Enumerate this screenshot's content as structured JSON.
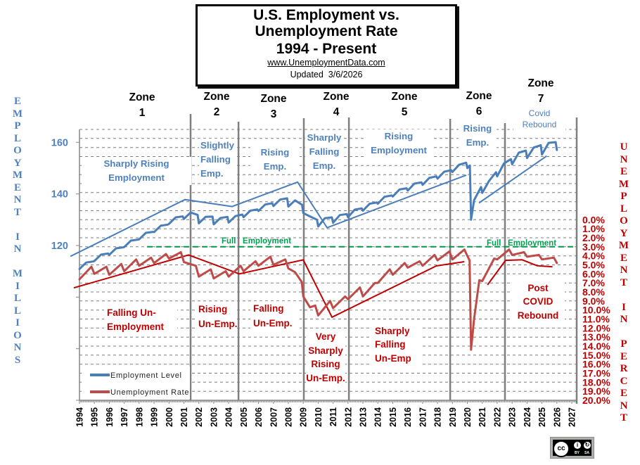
{
  "title": {
    "line1": "U.S. Employment vs.",
    "line2": "Unemployment Rate",
    "line3": "1994 - Present",
    "url": "www.UnemploymentData.com",
    "updated": "Updated  3/6/2026"
  },
  "zones": [
    {
      "label": "Zone",
      "number": "1"
    },
    {
      "label": "Zone",
      "number": "2"
    },
    {
      "label": "Zone",
      "number": "3"
    },
    {
      "label": "Zone",
      "number": "4"
    },
    {
      "label": "Zone",
      "number": "5"
    },
    {
      "label": "Zone",
      "number": "6"
    },
    {
      "label": "Zone",
      "number": "7"
    }
  ],
  "annotations": {
    "employment": [
      {
        "zone": 1,
        "lines": [
          "Sharply Rising",
          "Employment"
        ]
      },
      {
        "zone": 2,
        "lines": [
          "Slightly",
          "Falling",
          "Emp."
        ]
      },
      {
        "zone": 3,
        "lines": [
          "Rising",
          "Emp."
        ]
      },
      {
        "zone": 4,
        "lines": [
          "Sharply",
          "Falling",
          "Emp."
        ]
      },
      {
        "zone": 5,
        "lines": [
          "Rising",
          "Employment"
        ]
      },
      {
        "zone": 6,
        "lines": [
          "Rising",
          "Emp."
        ]
      },
      {
        "zone": 7,
        "lines": [
          "Covid",
          "Rebound"
        ]
      }
    ],
    "unemployment": [
      {
        "zone": 1,
        "lines": [
          "Falling Un-",
          "Employment"
        ]
      },
      {
        "zone": 2,
        "lines": [
          "Rising",
          "Un-Emp."
        ]
      },
      {
        "zone": 3,
        "lines": [
          "Falling",
          "Un-Emp."
        ]
      },
      {
        "zone": 4,
        "lines": [
          "Very",
          "Sharply",
          "Rising",
          "Un-Emp."
        ]
      },
      {
        "zone": 5,
        "lines": [
          "Sharply",
          "Falling",
          "Un-Emp"
        ]
      },
      {
        "zone": 7,
        "lines": [
          "Post",
          "COVID",
          "Rebound"
        ]
      }
    ]
  },
  "full_employment_label": "Full   Employment",
  "legend": [
    {
      "label": "Employment Level",
      "color": "#4a7ebb"
    },
    {
      "label": "Unemployment Rate",
      "color": "#be4b48"
    }
  ],
  "axis_titles": {
    "left": "EMPLOYMENT IN MILLIONS",
    "right": "UNEMPLOYMENT IN PERCENT"
  },
  "license": {
    "cc": "cc",
    "by_glyph": "i",
    "sa_glyph": "↻",
    "by": "BY",
    "sa": "SA"
  },
  "chart_data": {
    "type": "line",
    "title": "U.S. Employment vs. Unemployment Rate 1994 - Present",
    "subtitle": "www.UnemploymentData.com  Updated 3/6/2026",
    "grid": true,
    "legend_position": "bottom-left",
    "x_axis": {
      "label": "",
      "range": [
        1994,
        2027.33
      ],
      "tick_labels": [
        "1994",
        "1995",
        "1996",
        "1997",
        "1998",
        "1999",
        "2000",
        "2001",
        "2002",
        "2003",
        "2004",
        "2005",
        "2006",
        "2007",
        "2008",
        "2009",
        "2010",
        "2011",
        "2012",
        "2013",
        "2014",
        "2015",
        "2016",
        "2017",
        "2018",
        "2019",
        "2020",
        "2021",
        "2022",
        "2023",
        "2024",
        "2025",
        "2026",
        "2027"
      ]
    },
    "y_left": {
      "label": "EMPLOYMENT IN MILLIONS",
      "range": [
        60,
        165
      ],
      "tick_marks": [
        60,
        80,
        100,
        120,
        140,
        160
      ],
      "ticks": [
        {
          "value": 120,
          "label": "120"
        },
        {
          "value": 140,
          "label": "140"
        },
        {
          "value": 160,
          "label": "160"
        }
      ]
    },
    "y_right": {
      "label": "UNEMPLOYMENT IN PERCENT",
      "range": [
        -10,
        20
      ],
      "inverted": true,
      "grid_step": 1,
      "ticks": [
        {
          "value": 0,
          "label": "0.0%"
        },
        {
          "value": 1,
          "label": "1.0%"
        },
        {
          "value": 2,
          "label": "2.0%"
        },
        {
          "value": 3,
          "label": "3.0%"
        },
        {
          "value": 4,
          "label": "4.0%"
        },
        {
          "value": 5,
          "label": "5.0%"
        },
        {
          "value": 6,
          "label": "6.0%"
        },
        {
          "value": 7,
          "label": "7.0%"
        },
        {
          "value": 8,
          "label": "8.0%"
        },
        {
          "value": 9,
          "label": "9.0%"
        },
        {
          "value": 10,
          "label": "10.0%"
        },
        {
          "value": 11,
          "label": "11.0%"
        },
        {
          "value": 12,
          "label": "12.0%"
        },
        {
          "value": 13,
          "label": "13.0%"
        },
        {
          "value": 14,
          "label": "14.0%"
        },
        {
          "value": 15,
          "label": "15.0%"
        },
        {
          "value": 16,
          "label": "16.0%"
        },
        {
          "value": 17,
          "label": "17.0%"
        },
        {
          "value": 18,
          "label": "18.0%"
        },
        {
          "value": 19,
          "label": "19.0%"
        },
        {
          "value": 20,
          "label": "20.0%"
        }
      ]
    },
    "zone_boundaries": [
      2001.45,
      2004.66,
      2009.04,
      2012.06,
      2018.85,
      2022.52,
      2027.33
    ],
    "reference_lines": [
      {
        "name": "Full Employment",
        "axis": "right",
        "value": 3.0,
        "from": 1998.53,
        "color": "#00964b"
      }
    ],
    "series": [
      {
        "name": "Employment Level",
        "axis": "left",
        "units": "millions",
        "color": "#4a7ebb",
        "points": [
          [
            1994.0,
            110.9
          ],
          [
            1994.45,
            113.4
          ],
          [
            1994.92,
            113.8
          ],
          [
            1995.0,
            114.0
          ],
          [
            1995.45,
            116.5
          ],
          [
            1995.92,
            116.9
          ],
          [
            1996.0,
            116.4
          ],
          [
            1996.45,
            118.9
          ],
          [
            1996.92,
            119.3
          ],
          [
            1997.0,
            119.4
          ],
          [
            1997.45,
            121.9
          ],
          [
            1997.92,
            122.3
          ],
          [
            1998.0,
            122.4
          ],
          [
            1998.45,
            124.9
          ],
          [
            1998.92,
            125.3
          ],
          [
            1999.0,
            125.2
          ],
          [
            1999.45,
            127.7
          ],
          [
            1999.92,
            128.1
          ],
          [
            2000.0,
            128.4
          ],
          [
            2000.45,
            130.9
          ],
          [
            2000.92,
            131.3
          ],
          [
            2001.0,
            130.3
          ],
          [
            2001.45,
            132.8
          ],
          [
            2001.92,
            131.9
          ],
          [
            2002.0,
            128.6
          ],
          [
            2002.45,
            131.1
          ],
          [
            2002.92,
            131.2
          ],
          [
            2003.0,
            128.2
          ],
          [
            2003.45,
            130.7
          ],
          [
            2003.92,
            131.1
          ],
          [
            2004.0,
            128.9
          ],
          [
            2004.45,
            131.4
          ],
          [
            2004.92,
            132.0
          ],
          [
            2005.0,
            131.0
          ],
          [
            2005.45,
            133.5
          ],
          [
            2005.92,
            134.0
          ],
          [
            2006.0,
            133.4
          ],
          [
            2006.45,
            135.9
          ],
          [
            2006.92,
            136.4
          ],
          [
            2007.0,
            135.3
          ],
          [
            2007.45,
            137.8
          ],
          [
            2007.92,
            138.3
          ],
          [
            2008.0,
            135.1
          ],
          [
            2008.45,
            137.5
          ],
          [
            2008.92,
            135.8
          ],
          [
            2009.0,
            132.6
          ],
          [
            2009.45,
            131.3
          ],
          [
            2009.92,
            130.0
          ],
          [
            2010.0,
            127.4
          ],
          [
            2010.45,
            130.6
          ],
          [
            2010.92,
            130.9
          ],
          [
            2011.0,
            128.8
          ],
          [
            2011.45,
            131.8
          ],
          [
            2011.92,
            132.2
          ],
          [
            2012.0,
            131.0
          ],
          [
            2012.45,
            133.9
          ],
          [
            2012.92,
            134.4
          ],
          [
            2013.0,
            133.5
          ],
          [
            2013.45,
            136.2
          ],
          [
            2013.92,
            136.7
          ],
          [
            2014.0,
            136.2
          ],
          [
            2014.45,
            138.9
          ],
          [
            2014.92,
            139.4
          ],
          [
            2015.0,
            139.0
          ],
          [
            2015.45,
            141.7
          ],
          [
            2015.92,
            142.2
          ],
          [
            2016.0,
            141.3
          ],
          [
            2016.45,
            144.0
          ],
          [
            2016.92,
            144.5
          ],
          [
            2017.0,
            143.5
          ],
          [
            2017.45,
            146.2
          ],
          [
            2017.92,
            146.8
          ],
          [
            2018.0,
            145.9
          ],
          [
            2018.45,
            148.6
          ],
          [
            2018.92,
            149.2
          ],
          [
            2019.0,
            148.5
          ],
          [
            2019.45,
            151.3
          ],
          [
            2019.92,
            152.1
          ],
          [
            2020.0,
            150.0
          ],
          [
            2020.17,
            151.0
          ],
          [
            2020.25,
            130.0
          ],
          [
            2020.45,
            137.6
          ],
          [
            2020.92,
            142.7
          ],
          [
            2021.0,
            140.4
          ],
          [
            2021.45,
            145.0
          ],
          [
            2021.92,
            148.4
          ],
          [
            2022.0,
            146.8
          ],
          [
            2022.45,
            151.8
          ],
          [
            2022.92,
            153.5
          ],
          [
            2023.0,
            151.5
          ],
          [
            2023.45,
            156.0
          ],
          [
            2023.92,
            156.8
          ],
          [
            2024.0,
            153.9
          ],
          [
            2024.45,
            158.0
          ],
          [
            2024.92,
            158.9
          ],
          [
            2025.0,
            155.3
          ],
          [
            2025.45,
            159.8
          ],
          [
            2025.92,
            160.1
          ],
          [
            2026.0,
            157.0
          ]
        ]
      },
      {
        "name": "Unemployment Rate",
        "axis": "right",
        "units": "percent",
        "color": "#be4b48",
        "points": [
          [
            1994.0,
            6.6
          ],
          [
            1994.8,
            5.2
          ],
          [
            1995.0,
            6.0
          ],
          [
            1995.8,
            5.2
          ],
          [
            1996.0,
            6.1
          ],
          [
            1996.8,
            4.9
          ],
          [
            1997.0,
            5.7
          ],
          [
            1997.8,
            4.4
          ],
          [
            1998.0,
            5.1
          ],
          [
            1998.8,
            4.2
          ],
          [
            1999.0,
            4.8
          ],
          [
            1999.8,
            3.8
          ],
          [
            2000.0,
            4.3
          ],
          [
            2000.8,
            3.6
          ],
          [
            2001.0,
            4.7
          ],
          [
            2001.8,
            5.1
          ],
          [
            2002.0,
            6.3
          ],
          [
            2002.8,
            5.5
          ],
          [
            2003.0,
            6.5
          ],
          [
            2003.8,
            5.7
          ],
          [
            2004.0,
            6.3
          ],
          [
            2004.8,
            5.1
          ],
          [
            2005.0,
            5.7
          ],
          [
            2005.8,
            4.6
          ],
          [
            2006.0,
            5.1
          ],
          [
            2006.8,
            4.1
          ],
          [
            2007.0,
            5.0
          ],
          [
            2007.8,
            4.4
          ],
          [
            2008.0,
            5.4
          ],
          [
            2008.45,
            5.8
          ],
          [
            2008.9,
            6.9
          ],
          [
            2009.0,
            8.5
          ],
          [
            2009.45,
            9.7
          ],
          [
            2009.8,
            9.5
          ],
          [
            2010.0,
            10.6
          ],
          [
            2010.8,
            9.0
          ],
          [
            2011.0,
            9.8
          ],
          [
            2011.8,
            8.5
          ],
          [
            2012.0,
            8.8
          ],
          [
            2012.8,
            7.5
          ],
          [
            2013.0,
            8.5
          ],
          [
            2013.8,
            7.0
          ],
          [
            2014.0,
            7.0
          ],
          [
            2014.8,
            5.5
          ],
          [
            2015.0,
            6.1
          ],
          [
            2015.8,
            4.8
          ],
          [
            2016.0,
            5.3
          ],
          [
            2016.8,
            4.6
          ],
          [
            2017.0,
            5.1
          ],
          [
            2017.8,
            3.9
          ],
          [
            2018.0,
            4.5
          ],
          [
            2018.8,
            3.5
          ],
          [
            2019.0,
            4.4
          ],
          [
            2019.8,
            3.3
          ],
          [
            2020.0,
            4.0
          ],
          [
            2020.15,
            4.5
          ],
          [
            2020.25,
            14.4
          ],
          [
            2020.45,
            11.0
          ],
          [
            2020.8,
            6.7
          ],
          [
            2021.0,
            6.8
          ],
          [
            2021.8,
            4.3
          ],
          [
            2022.0,
            4.4
          ],
          [
            2022.8,
            3.3
          ],
          [
            2023.0,
            3.9
          ],
          [
            2023.8,
            3.6
          ],
          [
            2024.0,
            4.1
          ],
          [
            2024.8,
            3.9
          ],
          [
            2025.0,
            4.4
          ],
          [
            2025.8,
            4.2
          ],
          [
            2026.0,
            4.8
          ]
        ]
      }
    ],
    "trend_lines": {
      "employment": [
        [
          [
            1993.39,
            115.8
          ],
          [
            2001.07,
            137.8
          ],
          [
            2004.23,
            135.1
          ],
          [
            2008.62,
            144.6
          ],
          [
            2010.6,
            126.9
          ],
          [
            2019.93,
            147.3
          ]
        ],
        [
          [
            2020.78,
            136.5
          ],
          [
            2025.31,
            154.7
          ]
        ]
      ],
      "unemployment": [
        [
          [
            1993.62,
            7.55
          ],
          [
            2001.31,
            3.9
          ],
          [
            2004.71,
            6.0
          ],
          [
            2009.0,
            4.45
          ],
          [
            2010.93,
            10.8
          ],
          [
            2017.92,
            5.12
          ],
          [
            2019.8,
            4.65
          ]
        ],
        [
          [
            2021.35,
            7.22
          ],
          [
            2022.56,
            4.5
          ],
          [
            2023.67,
            4.44
          ],
          [
            2024.69,
            5.1
          ],
          [
            2025.71,
            5.22
          ]
        ]
      ]
    }
  }
}
